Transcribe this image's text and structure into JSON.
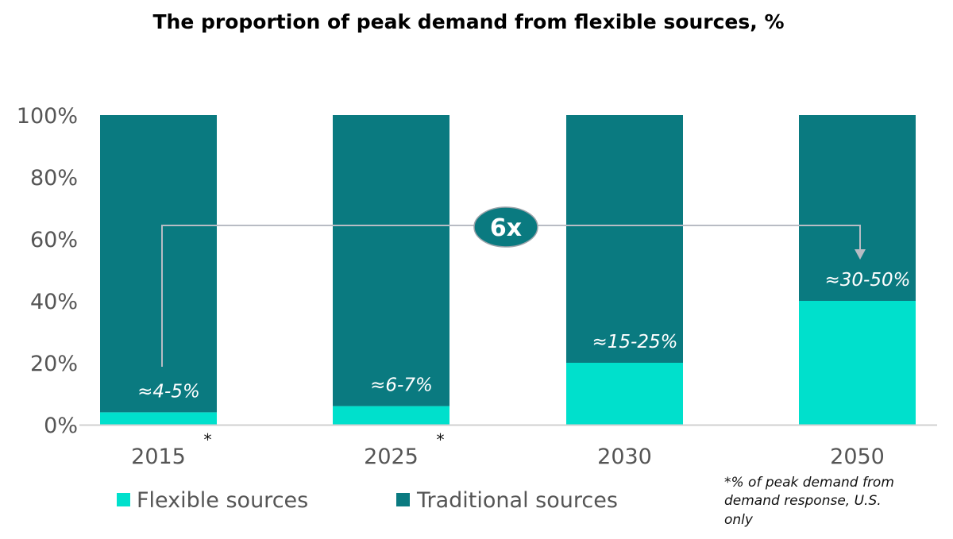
{
  "chart_data": {
    "type": "bar",
    "stacked": true,
    "title": "The proportion of peak demand from flexible sources, %",
    "categories": [
      "2015",
      "2025",
      "2030",
      "2050"
    ],
    "category_markers": [
      "*",
      "*",
      "",
      ""
    ],
    "series": [
      {
        "name": "Flexible sources",
        "color": "#00e0cc",
        "values": [
          4,
          6,
          20,
          40
        ]
      },
      {
        "name": "Traditional sources",
        "color": "#0a7a80",
        "values": [
          96,
          94,
          80,
          60
        ]
      }
    ],
    "data_labels": [
      "≈4-5%",
      "≈6-7%",
      "≈15-25%",
      "≈30-50%"
    ],
    "ylim": [
      0,
      100
    ],
    "yticks": [
      "0%",
      "20%",
      "40%",
      "60%",
      "80%",
      "100%"
    ],
    "grid": false,
    "legend": "bottom-left",
    "annotation": {
      "text": "6x",
      "from": "2015",
      "to": "2050"
    },
    "footnote": [
      "*% of peak demand from",
      "demand response, U.S.",
      "only"
    ]
  }
}
